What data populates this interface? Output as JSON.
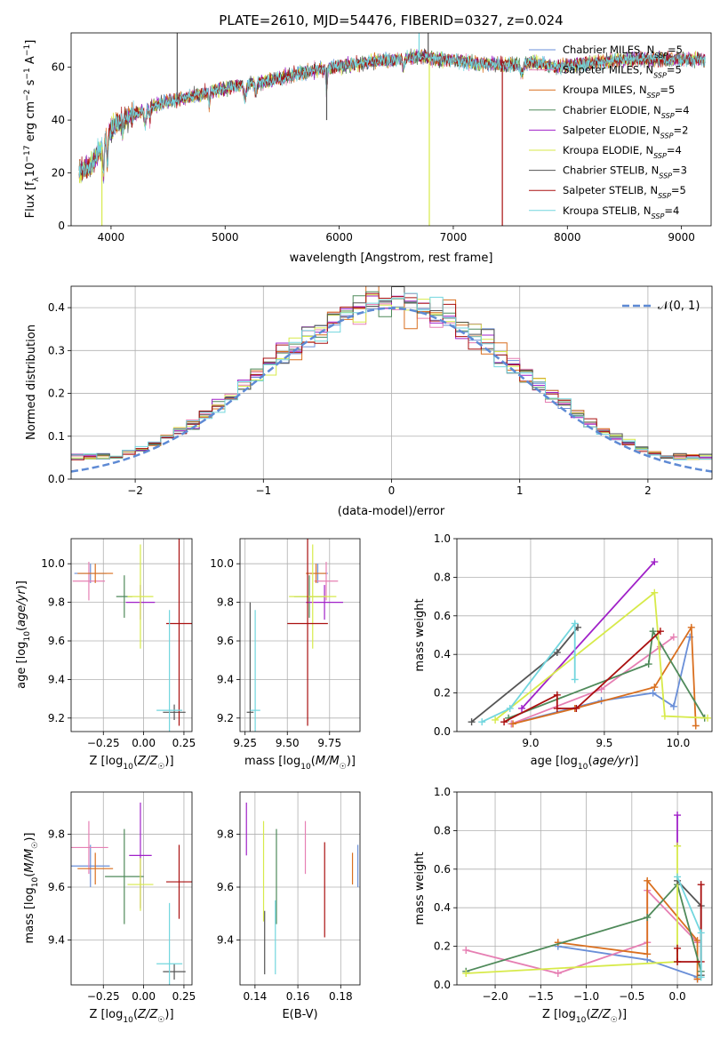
{
  "figure_title": "PLATE=2610, MJD=54476, FIBERID=0327, z=0.024",
  "colors": {
    "Chabrier MILES": "#6a8fd8",
    "Salpeter MILES": "#e67fb3",
    "Kroupa MILES": "#d96f1f",
    "Chabrier ELODIE": "#4f8a5a",
    "Salpeter ELODIE": "#a021c8",
    "Kroupa ELODIE": "#d7ea4a",
    "Chabrier STELIB": "#555555",
    "Salpeter STELIB": "#aa1010",
    "Kroupa STELIB": "#72d6de"
  },
  "chart_data": [
    {
      "id": "spectrum",
      "type": "line",
      "xlabel": "wavelength [Angstrom, rest frame]",
      "ylabel": "Flux [f_λ10^-17 erg cm^-2 s^-1 A^-1]",
      "xlim": [
        3650,
        9260
      ],
      "ylim": [
        0,
        73
      ],
      "xticks": [
        4000,
        5000,
        6000,
        7000,
        8000,
        9000
      ],
      "yticks": [
        0,
        20,
        40,
        60
      ],
      "legend_position": "upper right",
      "legend": [
        "Chabrier MILES, N_SSP=5",
        "Salpeter MILES, N_SSP=5",
        "Kroupa MILES, N_SSP=5",
        "Chabrier ELODIE, N_SSP=4",
        "Salpeter ELODIE, N_SSP=2",
        "Kroupa ELODIE, N_SSP=4",
        "Chabrier STELIB, N_SSP=3",
        "Salpeter STELIB, N_SSP=5",
        "Kroupa STELIB, N_SSP=4"
      ],
      "continuum": {
        "x": [
          3700,
          3800,
          3900,
          4000,
          4100,
          4200,
          4300,
          4400,
          4500,
          4700,
          4900,
          5100,
          5300,
          5500,
          5700,
          5900,
          6100,
          6300,
          6500,
          6700,
          6900,
          7100,
          7300,
          7500,
          7700,
          7900,
          8100,
          8300,
          8500,
          8700,
          8900,
          9000
        ],
        "y": [
          20,
          22,
          28,
          37,
          40,
          42,
          44,
          46,
          47,
          49,
          51,
          53,
          54,
          56,
          58,
          60,
          61,
          62,
          63,
          64,
          63,
          62,
          61,
          61,
          62,
          60,
          61,
          62,
          63,
          63,
          63,
          63
        ]
      }
    },
    {
      "id": "residuals",
      "type": "line",
      "xlabel": "(data-model)/error",
      "ylabel": "Normed distribution",
      "xlim": [
        -2.5,
        2.5
      ],
      "ylim": [
        0,
        0.45
      ],
      "xticks": [
        -2,
        -1,
        0,
        1,
        2
      ],
      "yticks": [
        0.0,
        0.1,
        0.2,
        0.3,
        0.4
      ],
      "legend": [
        "𝒩(0, 1)"
      ],
      "legend_position": "upper right",
      "bin_width": 0.1,
      "bins_start": -2.5
    },
    {
      "id": "age_vs_Z",
      "type": "scatter",
      "xlabel": "Z [log10(Z/Z☉)]",
      "ylabel": "age  [log10(age/yr)]",
      "xlim": [
        -0.45,
        0.3
      ],
      "ylim": [
        9.13,
        10.13
      ],
      "xticks": [
        -0.25,
        0.0,
        0.25
      ],
      "yticks": [
        9.2,
        9.4,
        9.6,
        9.8,
        10.0
      ],
      "points": [
        {
          "model": "Chabrier MILES",
          "x": -0.33,
          "y": 9.95,
          "xerr": 0.1,
          "yerr": 0.05
        },
        {
          "model": "Salpeter MILES",
          "x": -0.34,
          "y": 9.91,
          "xerr": 0.1,
          "yerr": 0.1
        },
        {
          "model": "Kroupa MILES",
          "x": -0.3,
          "y": 9.95,
          "xerr": 0.11,
          "yerr": 0.05
        },
        {
          "model": "Chabrier ELODIE",
          "x": -0.12,
          "y": 9.83,
          "xerr": 0.05,
          "yerr": 0.11
        },
        {
          "model": "Salpeter ELODIE",
          "x": -0.02,
          "y": 9.8,
          "xerr": 0.09,
          "yerr": 0.09
        },
        {
          "model": "Kroupa ELODIE",
          "x": -0.02,
          "y": 9.83,
          "xerr": 0.08,
          "yerr": 0.27
        },
        {
          "model": "Chabrier STELIB",
          "x": 0.19,
          "y": 9.23,
          "xerr": 0.07,
          "yerr": 0.04
        },
        {
          "model": "Salpeter STELIB",
          "x": 0.22,
          "y": 9.69,
          "xerr": 0.08,
          "yerr": 0.53
        },
        {
          "model": "Kroupa STELIB",
          "x": 0.16,
          "y": 9.24,
          "xerr": 0.08,
          "yerr": 0.52
        }
      ]
    },
    {
      "id": "age_vs_mass",
      "type": "scatter",
      "xlabel": "mass [log10(M/M☉)]",
      "ylabel": "",
      "xlim": [
        9.22,
        9.93
      ],
      "ylim": [
        9.13,
        10.13
      ],
      "xticks": [
        9.25,
        9.5,
        9.75
      ],
      "yticks": [
        9.2,
        9.4,
        9.6,
        9.8,
        10.0
      ],
      "points": [
        {
          "model": "Chabrier MILES",
          "x": 9.68,
          "y": 9.95,
          "xerr": 0.06,
          "yerr": 0.05
        },
        {
          "model": "Salpeter MILES",
          "x": 9.73,
          "y": 9.91,
          "xerr": 0.07,
          "yerr": 0.1
        },
        {
          "model": "Kroupa MILES",
          "x": 9.67,
          "y": 9.95,
          "xerr": 0.06,
          "yerr": 0.05
        },
        {
          "model": "Chabrier ELODIE",
          "x": 9.63,
          "y": 9.83,
          "xerr": 0.09,
          "yerr": 0.11
        },
        {
          "model": "Salpeter ELODIE",
          "x": 9.72,
          "y": 9.8,
          "xerr": 0.11,
          "yerr": 0.09
        },
        {
          "model": "Kroupa ELODIE",
          "x": 9.65,
          "y": 9.83,
          "xerr": 0.14,
          "yerr": 0.27
        },
        {
          "model": "Chabrier STELIB",
          "x": 9.28,
          "y": 9.23,
          "xerr": 0.02,
          "yerr": 0.57
        },
        {
          "model": "Salpeter STELIB",
          "x": 9.62,
          "y": 9.69,
          "xerr": 0.12,
          "yerr": 0.53
        },
        {
          "model": "Kroupa STELIB",
          "x": 9.31,
          "y": 9.24,
          "xerr": 0.03,
          "yerr": 0.52
        }
      ]
    },
    {
      "id": "mass_vs_Z",
      "type": "scatter",
      "xlabel": "Z [log10(Z/Z☉)]",
      "ylabel": "mass [log10(M/M☉)]",
      "xlim": [
        -0.45,
        0.3
      ],
      "ylim": [
        9.23,
        9.96
      ],
      "xticks": [
        -0.25,
        0.0,
        0.25
      ],
      "yticks": [
        9.4,
        9.6,
        9.8
      ],
      "points": [
        {
          "model": "Chabrier MILES",
          "x": -0.33,
          "y": 9.68,
          "xerr": 0.12,
          "yerr": 0.08
        },
        {
          "model": "Salpeter MILES",
          "x": -0.34,
          "y": 9.75,
          "xerr": 0.12,
          "yerr": 0.1
        },
        {
          "model": "Kroupa MILES",
          "x": -0.3,
          "y": 9.67,
          "xerr": 0.11,
          "yerr": 0.06
        },
        {
          "model": "Chabrier ELODIE",
          "x": -0.12,
          "y": 9.64,
          "xerr": 0.12,
          "yerr": 0.18
        },
        {
          "model": "Salpeter ELODIE",
          "x": -0.02,
          "y": 9.72,
          "xerr": 0.07,
          "yerr": 0.2
        },
        {
          "model": "Kroupa ELODIE",
          "x": -0.02,
          "y": 9.61,
          "xerr": 0.08,
          "yerr": 0.1
        },
        {
          "model": "Chabrier STELIB",
          "x": 0.19,
          "y": 9.28,
          "xerr": 0.07,
          "yerr": 0.03
        },
        {
          "model": "Salpeter STELIB",
          "x": 0.22,
          "y": 9.62,
          "xerr": 0.08,
          "yerr": 0.14
        },
        {
          "model": "Kroupa STELIB",
          "x": 0.16,
          "y": 9.31,
          "xerr": 0.08,
          "yerr": 0.23
        }
      ]
    },
    {
      "id": "mass_vs_ebv",
      "type": "scatter",
      "xlabel": "E(B-V)",
      "ylabel": "",
      "xlim": [
        0.133,
        0.189
      ],
      "ylim": [
        9.23,
        9.96
      ],
      "xticks": [
        0.14,
        0.16,
        0.18
      ],
      "yticks": [
        9.4,
        9.6,
        9.8
      ],
      "points": [
        {
          "model": "Chabrier MILES",
          "x": 0.188,
          "y": 9.68,
          "xerr": 0,
          "yerr": 0.08
        },
        {
          "model": "Salpeter MILES",
          "x": 0.1635,
          "y": 9.75,
          "xerr": 0,
          "yerr": 0.1
        },
        {
          "model": "Kroupa MILES",
          "x": 0.1855,
          "y": 9.67,
          "xerr": 0,
          "yerr": 0.06
        },
        {
          "model": "Chabrier ELODIE",
          "x": 0.15,
          "y": 9.64,
          "xerr": 0,
          "yerr": 0.18
        },
        {
          "model": "Salpeter ELODIE",
          "x": 0.136,
          "y": 9.82,
          "xerr": 0,
          "yerr": 0.1
        },
        {
          "model": "Kroupa ELODIE",
          "x": 0.144,
          "y": 9.66,
          "xerr": 0,
          "yerr": 0.19
        },
        {
          "model": "Chabrier STELIB",
          "x": 0.1445,
          "y": 9.39,
          "xerr": 0,
          "yerr": 0.12
        },
        {
          "model": "Salpeter STELIB",
          "x": 0.1725,
          "y": 9.59,
          "xerr": 0,
          "yerr": 0.18
        },
        {
          "model": "Kroupa STELIB",
          "x": 0.1495,
          "y": 9.41,
          "xerr": 0,
          "yerr": 0.14
        }
      ]
    },
    {
      "id": "weight_vs_age",
      "type": "line",
      "xlabel": "age  [log10(age/yr)]",
      "ylabel": "mass weight",
      "xlim": [
        8.5,
        10.23
      ],
      "ylim": [
        0,
        1
      ],
      "xticks": [
        9.0,
        9.5,
        10.0
      ],
      "yticks": [
        0.0,
        0.2,
        0.4,
        0.6,
        0.8,
        1.0
      ],
      "series": [
        {
          "model": "Chabrier MILES",
          "x": [
            8.87,
            9.48,
            9.83,
            9.97,
            10.08
          ],
          "y": [
            0.04,
            0.16,
            0.2,
            0.13,
            0.49
          ]
        },
        {
          "model": "Salpeter MILES",
          "x": [
            8.87,
            9.48,
            9.88,
            9.97
          ],
          "y": [
            0.04,
            0.22,
            0.44,
            0.49
          ]
        },
        {
          "model": "Kroupa MILES",
          "x": [
            8.88,
            9.3,
            9.84,
            10.09,
            10.12
          ],
          "y": [
            0.04,
            0.12,
            0.23,
            0.54,
            0.03
          ]
        },
        {
          "model": "Chabrier ELODIE",
          "x": [
            8.85,
            9.8,
            9.83,
            10.18
          ],
          "y": [
            0.07,
            0.35,
            0.52,
            0.07
          ]
        },
        {
          "model": "Salpeter ELODIE",
          "x": [
            8.94,
            9.84
          ],
          "y": [
            0.12,
            0.88
          ]
        },
        {
          "model": "Kroupa ELODIE",
          "x": [
            8.76,
            9.84,
            9.91,
            10.2
          ],
          "y": [
            0.06,
            0.72,
            0.08,
            0.07
          ]
        },
        {
          "model": "Chabrier STELIB",
          "x": [
            8.6,
            9.18,
            9.32
          ],
          "y": [
            0.05,
            0.41,
            0.54
          ]
        },
        {
          "model": "Salpeter STELIB",
          "x": [
            8.82,
            9.18,
            9.18,
            9.31,
            9.88
          ],
          "y": [
            0.05,
            0.19,
            0.12,
            0.12,
            0.52
          ]
        },
        {
          "model": "Kroupa STELIB",
          "x": [
            8.67,
            8.86,
            9.3,
            9.3
          ],
          "y": [
            0.05,
            0.12,
            0.56,
            0.27
          ]
        }
      ]
    },
    {
      "id": "weight_vs_Z",
      "type": "line",
      "xlabel": "Z [log10(Z/Z☉)]",
      "ylabel": "mass weight",
      "xlim": [
        -2.42,
        0.38
      ],
      "ylim": [
        0,
        1
      ],
      "xticks": [
        -2.0,
        -1.5,
        -1.0,
        -0.5,
        0.0
      ],
      "yticks": [
        0.0,
        0.2,
        0.4,
        0.6,
        0.8,
        1.0
      ],
      "series": [
        {
          "model": "Chabrier MILES",
          "x": [
            -1.31,
            -0.33,
            0.22,
            0.22
          ],
          "y": [
            0.2,
            0.13,
            0.04,
            0.03
          ]
        },
        {
          "model": "Salpeter MILES",
          "x": [
            -2.32,
            -1.31,
            -0.33,
            -0.33,
            0.22
          ],
          "y": [
            0.18,
            0.06,
            0.22,
            0.49,
            0.22
          ]
        },
        {
          "model": "Kroupa MILES",
          "x": [
            -1.31,
            -0.33,
            -0.33,
            0.22,
            0.22
          ],
          "y": [
            0.22,
            0.16,
            0.54,
            0.23,
            0.03
          ]
        },
        {
          "model": "Chabrier ELODIE",
          "x": [
            -2.32,
            -0.33,
            0.0,
            0.26
          ],
          "y": [
            0.07,
            0.35,
            0.52,
            0.07
          ]
        },
        {
          "model": "Salpeter ELODIE",
          "x": [
            0.0,
            0.0
          ],
          "y": [
            0.72,
            0.88
          ]
        },
        {
          "model": "Kroupa ELODIE",
          "x": [
            -2.32,
            0.0,
            0.0
          ],
          "y": [
            0.06,
            0.12,
            0.72
          ]
        },
        {
          "model": "Chabrier STELIB",
          "x": [
            0.0,
            0.26,
            0.26
          ],
          "y": [
            0.54,
            0.41,
            0.05
          ]
        },
        {
          "model": "Salpeter STELIB",
          "x": [
            0.0,
            0.0,
            0.26,
            0.26
          ],
          "y": [
            0.19,
            0.12,
            0.12,
            0.52
          ]
        },
        {
          "model": "Kroupa STELIB",
          "x": [
            0.0,
            0.26,
            0.26
          ],
          "y": [
            0.56,
            0.27,
            0.04
          ]
        }
      ]
    }
  ]
}
